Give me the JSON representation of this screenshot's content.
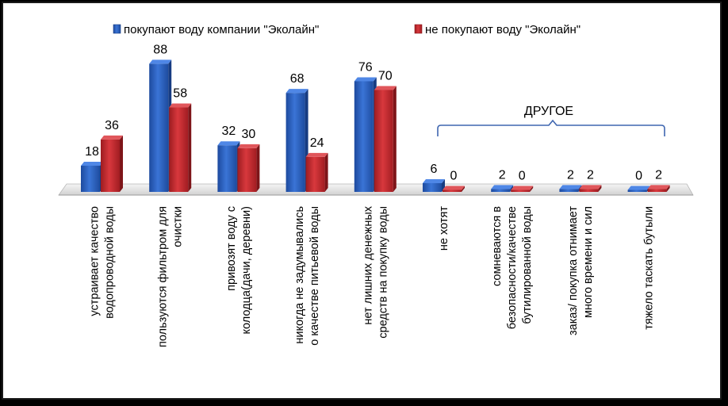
{
  "chart_data": {
    "type": "bar",
    "categories": [
      [
        "устраивает качество",
        "водопроводной воды"
      ],
      [
        "пользуются фильтром для",
        "очистки"
      ],
      [
        "привозят воду с",
        "колодца(дачи, деревни)"
      ],
      [
        "никогда не задумывались",
        "о качестве питьевой воды"
      ],
      [
        "нет лишних денежных",
        "средств на покупку воды"
      ],
      [
        "не хотят"
      ],
      [
        "сомневаются в",
        "безопасности/качестве",
        "бутилированной воды"
      ],
      [
        "заказ/ покупка отнимает",
        "много времени и сил"
      ],
      [
        "тяжело таскать бутыли"
      ]
    ],
    "series": [
      {
        "name": "покупают воду компании \"Эколайн\"",
        "values": [
          18,
          88,
          32,
          68,
          76,
          6,
          2,
          2,
          0
        ],
        "color": "#2e62c0"
      },
      {
        "name": "не покупают воду \"Эколайн\"",
        "values": [
          36,
          58,
          30,
          24,
          70,
          0,
          0,
          2,
          2
        ],
        "color": "#c0272d"
      }
    ],
    "annotation": "ДРУГОЕ",
    "ylim": [
      0,
      100
    ],
    "grid": false,
    "legend_position": "top",
    "style": "3d"
  }
}
